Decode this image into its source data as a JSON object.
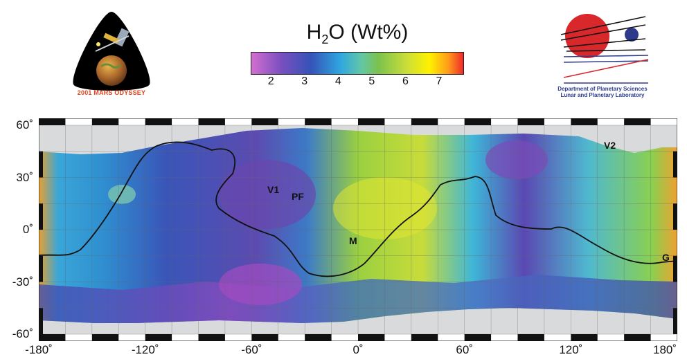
{
  "odyssey_logo": {
    "caption": "2001 MARS ODYSSEY"
  },
  "legend": {
    "title_base": "H",
    "title_sub": "2",
    "title_rest": "O (Wt%)",
    "ticks": [
      "2",
      "3",
      "4",
      "5",
      "6",
      "7"
    ],
    "colors": [
      "#d36fd1",
      "#7a4fbf",
      "#3553b8",
      "#2fa6e0",
      "#63c7a5",
      "#7cc24d",
      "#c9dd3a",
      "#fff200",
      "#ff9a1a",
      "#ee2a2a"
    ]
  },
  "dept_logo": {
    "line1": "Department of Planetary Sciences",
    "line2": "Lunar and Planetary Laboratory"
  },
  "map": {
    "lat_labels": [
      "60˚",
      "30˚",
      "0˚",
      "-30˚",
      "-60˚"
    ],
    "lon_labels": [
      "-180˚",
      "-120˚",
      "-60˚",
      "0˚",
      "60˚",
      "120˚",
      "180˚"
    ],
    "site_labels": {
      "v1": "V1",
      "pf": "PF",
      "m": "M",
      "v2": "V2",
      "g": "G"
    }
  }
}
